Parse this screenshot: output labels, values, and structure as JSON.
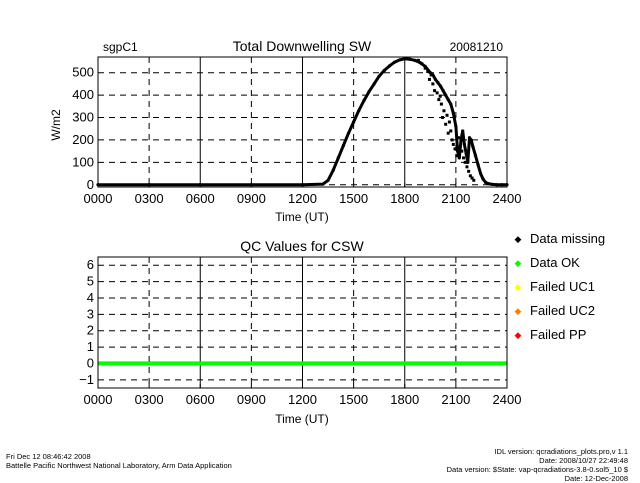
{
  "chart_data": [
    {
      "type": "scatter",
      "title": "Total Downwelling SW",
      "site_label": "sgpC1",
      "date_label": "20081210",
      "xlabel": "Time (UT)",
      "ylabel": "W/m2",
      "xlim": [
        0,
        2400
      ],
      "ylim": [
        -10,
        570
      ],
      "x_ticks": [
        "0000",
        "0300",
        "0600",
        "0900",
        "1200",
        "1500",
        "1800",
        "2100",
        "2400"
      ],
      "x_tick_values": [
        0,
        300,
        600,
        900,
        1200,
        1500,
        1800,
        2100,
        2400
      ],
      "y_ticks": [
        0,
        100,
        200,
        300,
        400,
        500
      ],
      "grid": true,
      "series": [
        {
          "color": "#000000",
          "x": [
            0,
            300,
            600,
            900,
            1200,
            1320,
            1350,
            1380,
            1410,
            1440,
            1470,
            1500,
            1530,
            1560,
            1590,
            1620,
            1650,
            1680,
            1710,
            1740,
            1770,
            1800,
            1830,
            1860,
            1890,
            1920,
            1950,
            1965,
            1980,
            1995,
            2010,
            2025,
            2040,
            2055,
            2070,
            2085,
            2100,
            2110,
            2120,
            2130,
            2140,
            2150,
            2160,
            2170,
            2180,
            2190,
            2200,
            2215,
            2230,
            2245,
            2260,
            2275,
            2290,
            2310,
            2340,
            2370,
            2400
          ],
          "y": [
            0,
            0,
            0,
            0,
            0,
            3,
            20,
            65,
            120,
            175,
            230,
            280,
            330,
            375,
            415,
            450,
            485,
            510,
            530,
            547,
            557,
            562,
            560,
            555,
            545,
            528,
            500,
            490,
            470,
            455,
            440,
            420,
            400,
            380,
            360,
            320,
            260,
            150,
            120,
            200,
            240,
            180,
            140,
            100,
            210,
            200,
            170,
            130,
            90,
            50,
            25,
            10,
            5,
            2,
            0,
            0,
            0
          ]
        },
        {
          "color": "#000000",
          "x": [
            1880,
            1900,
            1920,
            1935,
            1945,
            1955,
            1965,
            1975,
            1990,
            2000,
            2008,
            2015,
            2022,
            2030,
            2040,
            2048,
            2055,
            2062,
            2070,
            2078,
            2085,
            2095,
            2105,
            2115,
            2125,
            2135,
            2145,
            2155,
            2165,
            2175,
            2185,
            2195,
            2205
          ],
          "y": [
            555,
            540,
            520,
            505,
            470,
            490,
            450,
            420,
            410,
            380,
            395,
            360,
            300,
            330,
            270,
            310,
            230,
            280,
            240,
            200,
            180,
            160,
            130,
            210,
            170,
            150,
            120,
            100,
            80,
            60,
            40,
            30,
            20
          ]
        }
      ]
    },
    {
      "type": "line",
      "title": "QC Values for CSW",
      "xlabel": "Time (UT)",
      "xlim": [
        0,
        2400
      ],
      "ylim": [
        -1.5,
        6.5
      ],
      "x_ticks": [
        "0000",
        "0300",
        "0600",
        "0900",
        "1200",
        "1500",
        "1800",
        "2100",
        "2400"
      ],
      "x_tick_values": [
        0,
        300,
        600,
        900,
        1200,
        1500,
        1800,
        2100,
        2400
      ],
      "y_ticks": [
        -1,
        0,
        1,
        2,
        3,
        4,
        5,
        6
      ],
      "grid": true,
      "series": [
        {
          "color": "#00ff00",
          "x": [
            0,
            2400
          ],
          "y": [
            0,
            0
          ]
        }
      ],
      "legend": [
        {
          "label": "Data missing",
          "color": "#000000"
        },
        {
          "label": "Data OK",
          "color": "#00ff00"
        },
        {
          "label": "Failed UC1",
          "color": "#ffff00"
        },
        {
          "label": "Failed UC2",
          "color": "#ff8000"
        },
        {
          "label": "Failed PP",
          "color": "#ff0000"
        }
      ]
    }
  ],
  "footer": {
    "left_line1": "Fri Dec 12 08:46:42 2008",
    "left_line2": "Battelle Pacific Northwest National Laboratory, Arm Data Application",
    "right_line1": "IDL version: qcradiations_plots.pro,v 1.1",
    "right_line2": "Date: 2008/10/27 22:49:48",
    "right_line3": "Data version: $State: vap-qcradiations-3.8-0.sol5_10 $",
    "right_line4": "Date: 12-Dec-2008"
  }
}
